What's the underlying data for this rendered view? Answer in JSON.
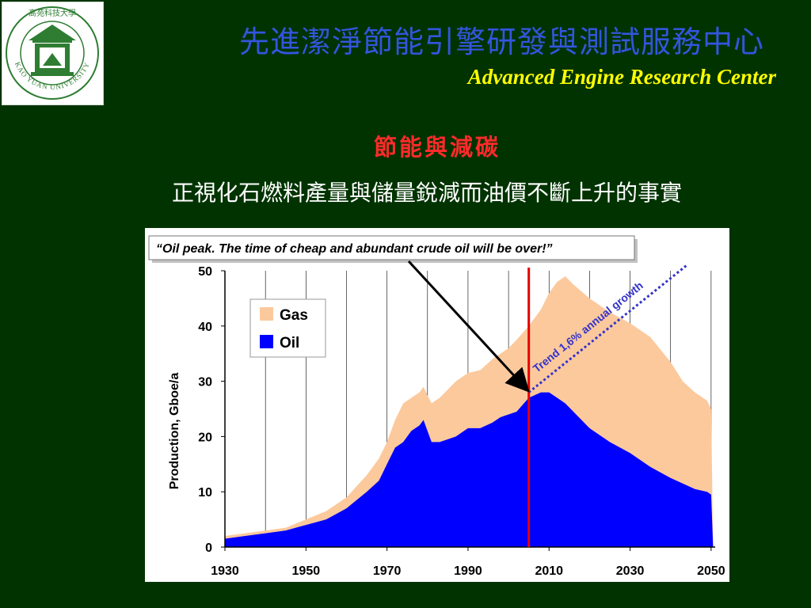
{
  "header": {
    "title_zh": "先進潔淨節能引擎研發與測試服務中心",
    "title_en": "Advanced Engine Research Center"
  },
  "logo": {
    "university": "KAO YUAN UNIVERSITY",
    "seal_chars": "高苑科技大學"
  },
  "slide": {
    "heading": "節能與減碳",
    "subheading": "正視化石燃料產量與儲量銳減而油價不斷上升的事實"
  },
  "colors": {
    "background": "#003300",
    "gas": "#fcc99d",
    "oil": "#0000ff",
    "trend": "#3333cc",
    "marker": "#e60000"
  },
  "chart_data": {
    "type": "area",
    "callout": "“Oil peak. The time of cheap and abundant crude oil will be over!”",
    "ylabel": "Production, Gboe/a",
    "xlabel": "",
    "xlim": [
      1930,
      2051
    ],
    "ylim": [
      0,
      50
    ],
    "x_ticks": [
      "1930",
      "1950",
      "1970",
      "1990",
      "2010",
      "2030",
      "2050"
    ],
    "y_ticks": [
      "0",
      "10",
      "20",
      "30",
      "40",
      "50"
    ],
    "grid": "vertical",
    "legend_position": "top-left",
    "legend": [
      "Gas",
      "Oil"
    ],
    "marker_year": 2005,
    "trend": {
      "label": "Trend 1,6% annual growth",
      "from": [
        2005,
        28
      ],
      "to": [
        2044,
        51
      ]
    },
    "x": [
      1930,
      1935,
      1940,
      1945,
      1950,
      1955,
      1960,
      1965,
      1968,
      1970,
      1972,
      1974,
      1976,
      1978,
      1979,
      1981,
      1983,
      1985,
      1987,
      1990,
      1993,
      1996,
      1998,
      2000,
      2002,
      2005,
      2008,
      2010,
      2012,
      2014,
      2016,
      2020,
      2025,
      2030,
      2035,
      2040,
      2043,
      2046,
      2049,
      2050,
      2050.5
    ],
    "series": [
      {
        "name": "Oil",
        "values": [
          1.5,
          2,
          2.5,
          3,
          4,
          5,
          7,
          10,
          12,
          15,
          18,
          19,
          21,
          22,
          23,
          19,
          19,
          19.5,
          20,
          21.5,
          21.5,
          22.5,
          23.5,
          24,
          24.5,
          27,
          28,
          28,
          27,
          26,
          24.5,
          21.5,
          19,
          17,
          14.5,
          12.5,
          11.5,
          10.5,
          10,
          9.5,
          0
        ]
      },
      {
        "name": "Gas",
        "values": [
          2,
          2.5,
          3,
          3.5,
          5,
          6.5,
          9,
          13,
          16,
          19,
          23,
          26,
          27,
          28,
          29,
          26,
          27,
          28.5,
          30,
          31.5,
          32,
          34,
          35,
          36,
          37.5,
          40,
          43,
          46,
          48,
          49,
          47.5,
          45,
          42.5,
          40.5,
          38,
          33.5,
          30,
          28,
          26.5,
          25,
          0
        ]
      }
    ]
  }
}
